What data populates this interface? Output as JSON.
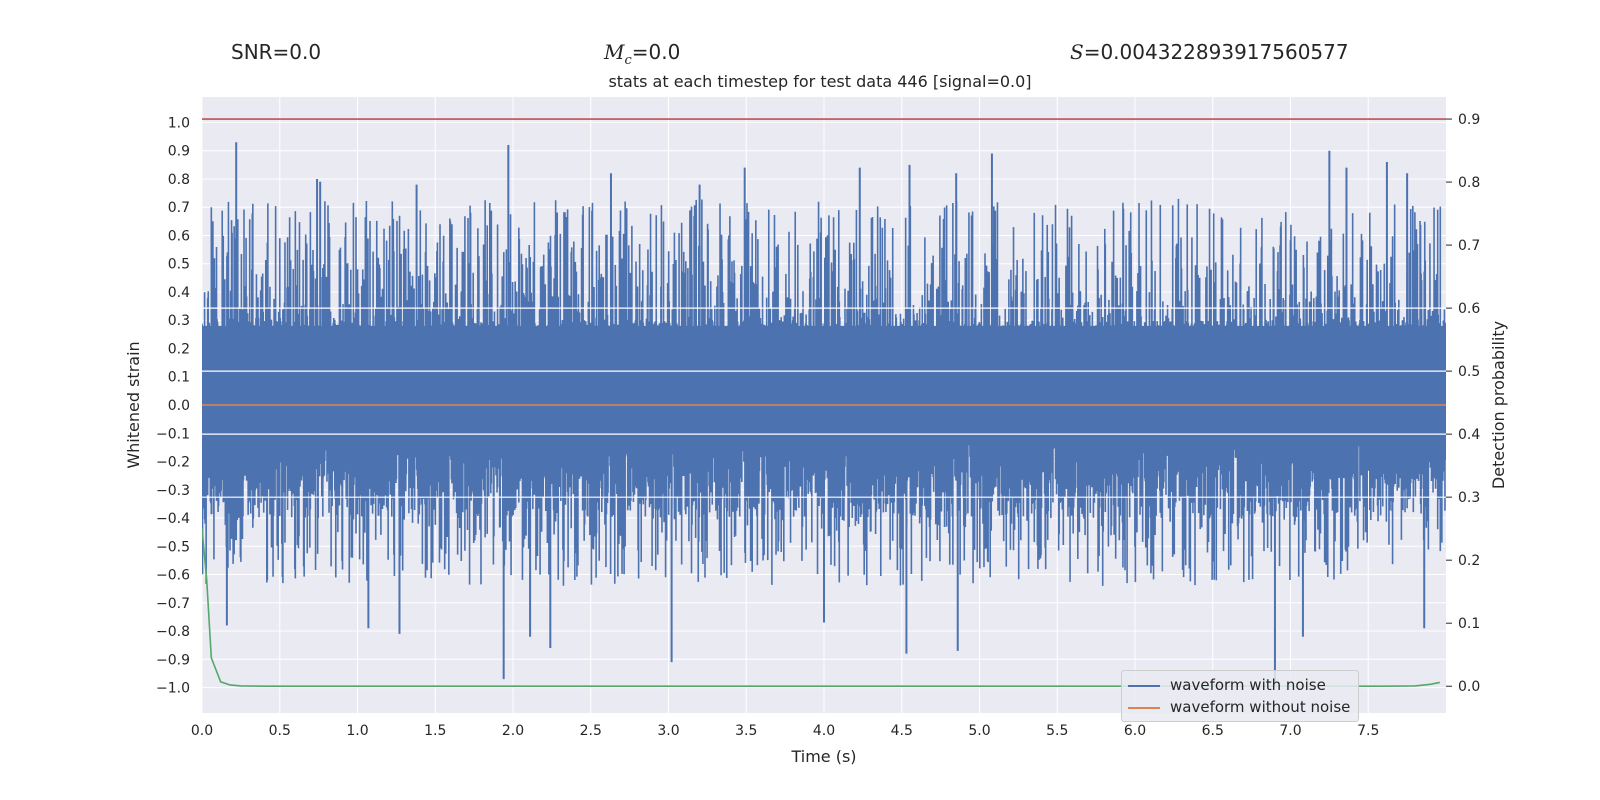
{
  "header": {
    "snr_label": "SNR=0.0",
    "mc_symbol": "M",
    "mc_sub": "c",
    "mc_value": "=0.0",
    "s_symbol": "S",
    "s_value": "=0.004322893917560577"
  },
  "chart_data": {
    "type": "line",
    "title": "stats at each timestep for test data 446 [signal=0.0]",
    "xlabel": "Time (s)",
    "ylabel": "Whitened strain",
    "y2label": "Detection probability",
    "xlim": [
      0.0,
      8.0
    ],
    "ylim": [
      -1.09,
      1.09
    ],
    "y2lim": [
      -0.0425,
      0.935
    ],
    "x_ticks": [
      "0.0",
      "0.5",
      "1.0",
      "1.5",
      "2.0",
      "2.5",
      "3.0",
      "3.5",
      "4.0",
      "4.5",
      "5.0",
      "5.5",
      "6.0",
      "6.5",
      "7.0",
      "7.5"
    ],
    "y_ticks": [
      "1.0",
      "0.9",
      "0.8",
      "0.7",
      "0.6",
      "0.5",
      "0.4",
      "0.3",
      "0.2",
      "0.1",
      "0.0",
      "-0.1",
      "-0.2",
      "-0.3",
      "-0.4",
      "-0.5",
      "-0.6",
      "-0.7",
      "-0.8",
      "-0.9",
      "-1.0"
    ],
    "y2_ticks": [
      "0.9",
      "0.8",
      "0.7",
      "0.6",
      "0.5",
      "0.4",
      "0.3",
      "0.2",
      "0.1",
      "0.0"
    ],
    "threshold": 0.9,
    "series": [
      {
        "name": "waveform with noise",
        "color": "#4c72b0",
        "axis": "left",
        "upper_envelope_max": 0.93,
        "lower_envelope_min": -0.98,
        "peaks": [
          {
            "x": 0.22,
            "y": 0.93
          },
          {
            "x": 0.74,
            "y": 0.8
          },
          {
            "x": 0.76,
            "y": 0.79
          },
          {
            "x": 1.38,
            "y": 0.78
          },
          {
            "x": 1.97,
            "y": 0.92
          },
          {
            "x": 2.63,
            "y": 0.82
          },
          {
            "x": 3.2,
            "y": 0.78
          },
          {
            "x": 3.49,
            "y": 0.84
          },
          {
            "x": 4.23,
            "y": 0.84
          },
          {
            "x": 4.55,
            "y": 0.85
          },
          {
            "x": 4.85,
            "y": 0.82
          },
          {
            "x": 5.08,
            "y": 0.89
          },
          {
            "x": 7.25,
            "y": 0.9
          },
          {
            "x": 7.36,
            "y": 0.84
          },
          {
            "x": 7.62,
            "y": 0.86
          },
          {
            "x": 7.75,
            "y": 0.82
          }
        ],
        "troughs": [
          {
            "x": 0.16,
            "y": -0.78
          },
          {
            "x": 1.07,
            "y": -0.79
          },
          {
            "x": 1.27,
            "y": -0.81
          },
          {
            "x": 1.94,
            "y": -0.97
          },
          {
            "x": 2.11,
            "y": -0.82
          },
          {
            "x": 2.24,
            "y": -0.86
          },
          {
            "x": 3.02,
            "y": -0.91
          },
          {
            "x": 4.0,
            "y": -0.77
          },
          {
            "x": 4.53,
            "y": -0.88
          },
          {
            "x": 4.86,
            "y": -0.87
          },
          {
            "x": 6.9,
            "y": -0.99
          },
          {
            "x": 7.08,
            "y": -0.82
          },
          {
            "x": 7.86,
            "y": -0.79
          }
        ]
      },
      {
        "name": "waveform without noise",
        "color": "#dd8452",
        "axis": "left",
        "x": [
          0.0,
          8.0
        ],
        "y": [
          0.0,
          0.0
        ]
      },
      {
        "name": "detection probability",
        "color": "#55a868",
        "axis": "right",
        "x": [
          0.0,
          0.03,
          0.06,
          0.12,
          0.18,
          0.25,
          0.4,
          1.0,
          3.0,
          5.0,
          7.0,
          7.6,
          7.8,
          7.9,
          7.96
        ],
        "y": [
          0.25,
          0.17,
          0.045,
          0.007,
          0.002,
          0.0005,
          0.0,
          0.0,
          0.0,
          0.0,
          0.0,
          0.0,
          0.0005,
          0.003,
          0.006
        ]
      },
      {
        "name": "threshold",
        "color": "#c44e52",
        "axis": "right",
        "x": [
          0.0,
          8.0
        ],
        "y": [
          0.9,
          0.9
        ]
      }
    ],
    "legend": {
      "placement": "bottom-right",
      "entries": [
        "waveform with noise",
        "waveform without noise"
      ]
    }
  }
}
